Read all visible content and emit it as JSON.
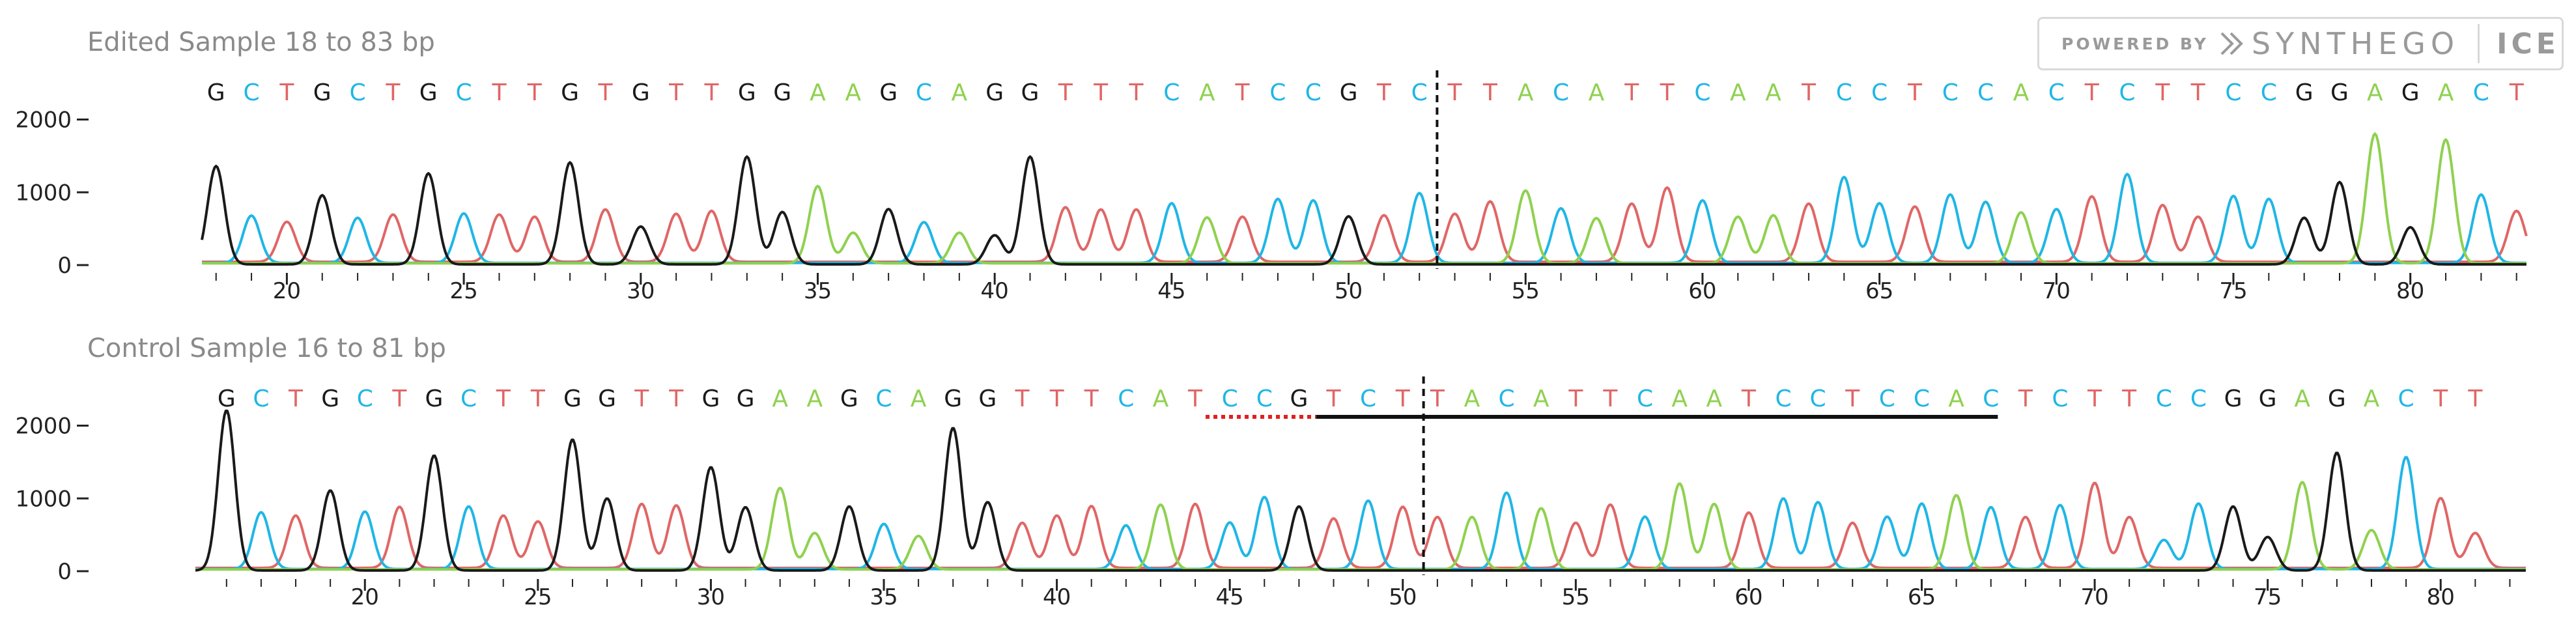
{
  "badge": {
    "powered_by": "POWERED BY",
    "brand": "SYNTHEGO",
    "product": "ICE"
  },
  "colors": {
    "A": "#8fd14f",
    "C": "#1fb6e6",
    "G": "#1a1a1a",
    "T": "#e06666"
  },
  "chart_data": [
    {
      "type": "line",
      "title": "Edited Sample 18 to 83 bp",
      "xlabel": "",
      "ylabel": "",
      "x_start": 18,
      "xlim": [
        17.6,
        83.3
      ],
      "ylim": [
        0,
        2300
      ],
      "yticks": [
        0,
        1000,
        2000
      ],
      "xticks": [
        20,
        25,
        30,
        35,
        40,
        45,
        50,
        55,
        60,
        65,
        70,
        75,
        80
      ],
      "cut_site": 52.5,
      "bases": [
        "G",
        "C",
        "T",
        "G",
        "C",
        "T",
        "G",
        "C",
        "T",
        "T",
        "G",
        "T",
        "G",
        "T",
        "T",
        "G",
        "G",
        "A",
        "A",
        "G",
        "C",
        "A",
        "G",
        "G",
        "T",
        "T",
        "T",
        "C",
        "A",
        "T",
        "C",
        "C",
        "G",
        "T",
        "C",
        "T",
        "T",
        "A",
        "C",
        "A",
        "T",
        "T",
        "C",
        "A",
        "A",
        "T",
        "C",
        "C",
        "T",
        "C",
        "C",
        "A",
        "C",
        "T",
        "C",
        "T",
        "T",
        "C",
        "C",
        "G",
        "G",
        "A",
        "G",
        "A",
        "C",
        "T"
      ],
      "peak_heights": [
        1350,
        650,
        550,
        950,
        620,
        650,
        1250,
        680,
        650,
        620,
        1400,
        720,
        520,
        660,
        700,
        1480,
        720,
        1060,
        420,
        760,
        560,
        420,
        400,
        1480,
        750,
        720,
        720,
        820,
        630,
        620,
        880,
        860,
        660,
        640,
        960,
        660,
        830,
        1000,
        750,
        620,
        800,
        1020,
        860,
        640,
        660,
        800,
        1180,
        820,
        760,
        940,
        840,
        700,
        740,
        900,
        1220,
        780,
        620,
        920,
        880,
        640,
        1130,
        1780,
        510,
        1700,
        940,
        700
      ]
    },
    {
      "type": "line",
      "title": "Control Sample 16 to 81 bp",
      "xlabel": "",
      "ylabel": "",
      "x_start": 16,
      "xlim": [
        15.1,
        82.5
      ],
      "ylim": [
        0,
        2300
      ],
      "yticks": [
        0,
        1000,
        2000
      ],
      "xticks": [
        20,
        25,
        30,
        35,
        40,
        45,
        50,
        55,
        60,
        65,
        70,
        75,
        80
      ],
      "cut_site": 50.6,
      "guide_pam_range": [
        44.3,
        47.5
      ],
      "guide_range": [
        47.5,
        67.2
      ],
      "bases": [
        "G",
        "C",
        "T",
        "G",
        "C",
        "T",
        "G",
        "C",
        "T",
        "T",
        "G",
        "G",
        "T",
        "T",
        "G",
        "G",
        "A",
        "A",
        "G",
        "C",
        "A",
        "G",
        "G",
        "T",
        "T",
        "T",
        "C",
        "A",
        "T",
        "C",
        "C",
        "G",
        "T",
        "C",
        "T",
        "T",
        "A",
        "C",
        "A",
        "T",
        "T",
        "C",
        "A",
        "A",
        "T",
        "C",
        "C",
        "T",
        "C",
        "C",
        "A",
        "C",
        "T",
        "C",
        "T",
        "T",
        "C",
        "C",
        "G",
        "G",
        "A",
        "G",
        "A",
        "C",
        "T",
        "T"
      ],
      "peak_heights": [
        2200,
        780,
        720,
        1100,
        790,
        840,
        1580,
        860,
        720,
        640,
        1800,
        990,
        880,
        860,
        1420,
        870,
        1120,
        500,
        880,
        620,
        460,
        1960,
        940,
        620,
        720,
        850,
        600,
        890,
        880,
        640,
        990,
        880,
        680,
        940,
        840,
        700,
        720,
        1050,
        840,
        620,
        870,
        720,
        1180,
        900,
        760,
        970,
        920,
        620,
        720,
        900,
        1020,
        850,
        700,
        880,
        1170,
        700,
        400,
        900,
        880,
        460,
        1200,
        1620,
        540,
        1540,
        960,
        480
      ]
    }
  ]
}
